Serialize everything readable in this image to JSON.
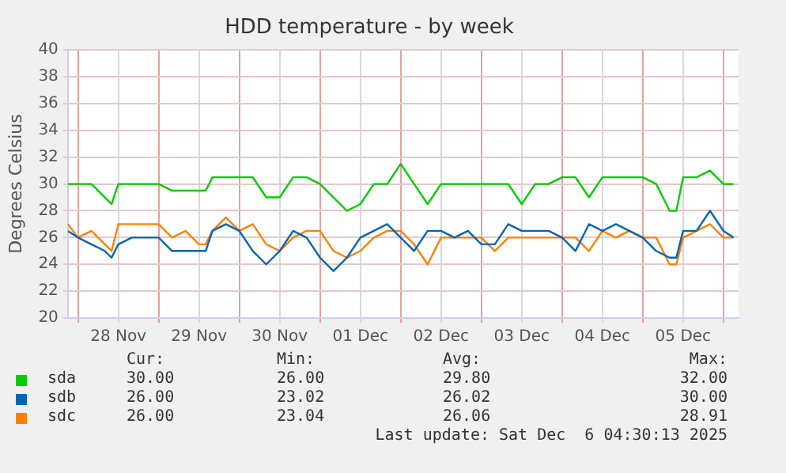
{
  "chart_data": {
    "type": "line",
    "title": "HDD temperature - by week",
    "ylabel": "Degrees Celsius",
    "x": [
      "2025-11-27T21:00",
      "2025-11-28T00:00",
      "2025-11-28T04:00",
      "2025-11-28T08:00",
      "2025-11-28T10:00",
      "2025-11-28T12:00",
      "2025-11-28T16:00",
      "2025-11-28T20:00",
      "2025-11-29T00:00",
      "2025-11-29T04:00",
      "2025-11-29T08:00",
      "2025-11-29T12:00",
      "2025-11-29T14:00",
      "2025-11-29T16:00",
      "2025-11-29T20:00",
      "2025-11-30T00:00",
      "2025-11-30T04:00",
      "2025-11-30T08:00",
      "2025-11-30T12:00",
      "2025-11-30T16:00",
      "2025-11-30T20:00",
      "2025-12-01T00:00",
      "2025-12-01T04:00",
      "2025-12-01T08:00",
      "2025-12-01T12:00",
      "2025-12-01T16:00",
      "2025-12-01T20:00",
      "2025-12-02T00:00",
      "2025-12-02T04:00",
      "2025-12-02T08:00",
      "2025-12-02T12:00",
      "2025-12-02T16:00",
      "2025-12-02T20:00",
      "2025-12-03T00:00",
      "2025-12-03T04:00",
      "2025-12-03T08:00",
      "2025-12-03T12:00",
      "2025-12-03T16:00",
      "2025-12-03T20:00",
      "2025-12-04T00:00",
      "2025-12-04T04:00",
      "2025-12-04T08:00",
      "2025-12-04T12:00",
      "2025-12-04T16:00",
      "2025-12-04T20:00",
      "2025-12-05T00:00",
      "2025-12-05T04:00",
      "2025-12-05T08:00",
      "2025-12-05T10:00",
      "2025-12-05T12:00",
      "2025-12-05T16:00",
      "2025-12-05T20:00",
      "2025-12-06T00:00",
      "2025-12-06T03:00"
    ],
    "series": [
      {
        "name": "sda",
        "color": "#00cc00",
        "values": [
          30,
          30,
          30,
          29,
          28.5,
          30,
          30,
          30,
          30,
          29.5,
          29.5,
          29.5,
          29.5,
          30.5,
          30.5,
          30.5,
          30.5,
          29,
          29,
          30.5,
          30.5,
          30,
          29,
          28,
          28.5,
          30,
          30,
          31.5,
          30,
          28.5,
          30,
          30,
          30,
          30,
          30,
          30,
          28.5,
          30,
          30,
          30.5,
          30.5,
          29,
          30.5,
          30.5,
          30.5,
          30.5,
          30,
          28,
          28,
          30.5,
          30.5,
          31,
          30,
          30
        ]
      },
      {
        "name": "sdb",
        "color": "#0066b3",
        "values": [
          26.5,
          26,
          25.5,
          25,
          24.5,
          25.5,
          26,
          26,
          26,
          25,
          25,
          25,
          25,
          26.5,
          27,
          26.5,
          25,
          24,
          25,
          26.5,
          26,
          24.5,
          23.5,
          24.5,
          26,
          26.5,
          27,
          26,
          25,
          26.5,
          26.5,
          26,
          26.5,
          25.5,
          25.5,
          27,
          26.5,
          26.5,
          26.5,
          26,
          25,
          27,
          26.5,
          27,
          26.5,
          26,
          25,
          24.5,
          24.5,
          26.5,
          26.5,
          28,
          26.5,
          26
        ]
      },
      {
        "name": "sdc",
        "color": "#ff8000",
        "values": [
          27,
          26,
          26.5,
          25.5,
          25,
          27,
          27,
          27,
          27,
          26,
          26.5,
          25.5,
          25.5,
          26.5,
          27.5,
          26.5,
          27,
          25.5,
          25,
          26,
          26.5,
          26.5,
          25,
          24.5,
          25,
          26,
          26.5,
          26.5,
          25.5,
          24,
          26,
          26,
          26,
          26,
          25,
          26,
          26,
          26,
          26,
          26,
          26,
          25,
          26.5,
          26,
          26.5,
          26,
          26,
          24,
          24,
          26,
          26.5,
          27,
          26,
          26
        ]
      }
    ],
    "xlim": [
      "2025-11-27T21:00",
      "2025-12-06T04:30"
    ],
    "xticks": [
      {
        "value": "2025-11-28T00:00",
        "label": null
      },
      {
        "value": "2025-11-28T12:00",
        "label": "28 Nov"
      },
      {
        "value": "2025-11-29T00:00",
        "label": null
      },
      {
        "value": "2025-11-29T12:00",
        "label": "29 Nov"
      },
      {
        "value": "2025-11-30T00:00",
        "label": null
      },
      {
        "value": "2025-11-30T12:00",
        "label": "30 Nov"
      },
      {
        "value": "2025-12-01T00:00",
        "label": null
      },
      {
        "value": "2025-12-01T12:00",
        "label": "01 Dec"
      },
      {
        "value": "2025-12-02T00:00",
        "label": null
      },
      {
        "value": "2025-12-02T12:00",
        "label": "02 Dec"
      },
      {
        "value": "2025-12-03T00:00",
        "label": null
      },
      {
        "value": "2025-12-03T12:00",
        "label": "03 Dec"
      },
      {
        "value": "2025-12-04T00:00",
        "label": null
      },
      {
        "value": "2025-12-04T12:00",
        "label": "04 Dec"
      },
      {
        "value": "2025-12-05T00:00",
        "label": null
      },
      {
        "value": "2025-12-05T12:00",
        "label": "05 Dec"
      },
      {
        "value": "2025-12-06T00:00",
        "label": null
      }
    ],
    "ylim": [
      20,
      40
    ],
    "yticks": [
      20,
      22,
      24,
      26,
      28,
      30,
      32,
      34,
      36,
      38,
      40
    ],
    "grid": true,
    "legend": "bottom",
    "marker": "none",
    "line_style": "solid",
    "annotations": [
      "Cur:",
      "Min:",
      "Avg:",
      "Max:",
      "30.00",
      "26.00",
      "29.80",
      "32.00",
      "26.00",
      "23.02",
      "26.02",
      "30.00",
      "26.00",
      "23.04",
      "26.06",
      "28.91",
      "Last update: Sat Dec  6 04:30:13 2025"
    ]
  }
}
